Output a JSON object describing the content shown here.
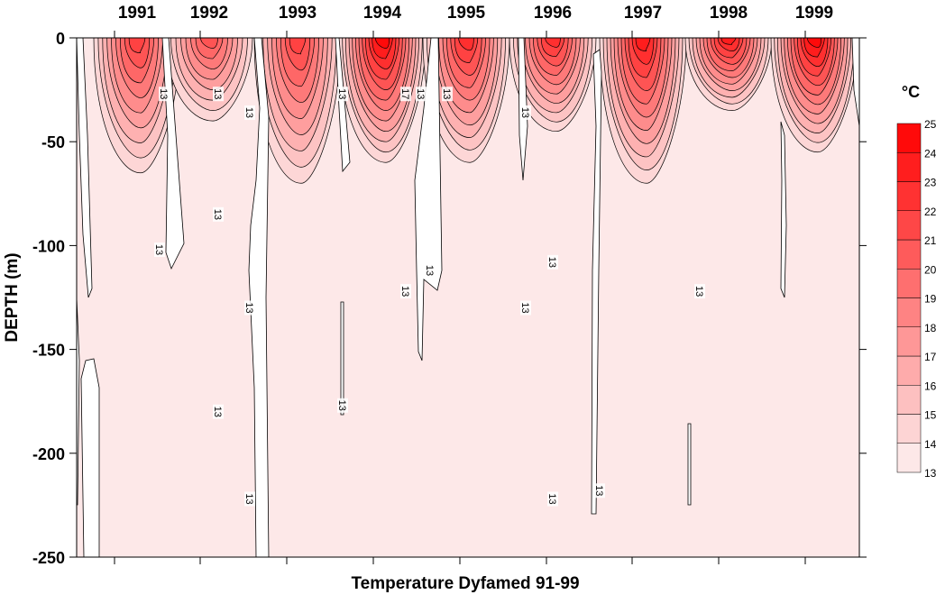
{
  "chart_data": {
    "type": "heatmap",
    "title": "Temperature Dyfamed 91-99",
    "ylabel": "DEPTH (m)",
    "xlabel": "",
    "ylim": [
      -250,
      0
    ],
    "y_ticks": [
      0,
      -50,
      -100,
      -150,
      -200,
      -250
    ],
    "x_categories": [
      "1991",
      "1992",
      "1993",
      "1994",
      "1995",
      "1996",
      "1997",
      "1998",
      "1999"
    ],
    "colorbar": {
      "unit": "°C",
      "levels": [
        13,
        14,
        15,
        16,
        17,
        18,
        19,
        20,
        21,
        22,
        23,
        24,
        25
      ],
      "min_color": "#fde8e8",
      "max_color": "#ff0a0a"
    },
    "contour_labels": [
      {
        "year": "1991",
        "depth": -27,
        "value": "13"
      },
      {
        "year": "1991",
        "depth": -102,
        "value": "13"
      },
      {
        "year": "1992",
        "depth": -27,
        "value": "13"
      },
      {
        "year": "1992",
        "depth": -36,
        "value": "13"
      },
      {
        "year": "1992",
        "depth": -85,
        "value": "13"
      },
      {
        "year": "1992",
        "depth": -130,
        "value": "13"
      },
      {
        "year": "1992",
        "depth": -180,
        "value": "13"
      },
      {
        "year": "1992",
        "depth": -222,
        "value": "13"
      },
      {
        "year": "1993",
        "depth": -27,
        "value": "13"
      },
      {
        "year": "1993",
        "depth": -177,
        "value": "13"
      },
      {
        "year": "1994",
        "depth": -27,
        "value": "17"
      },
      {
        "year": "1994",
        "depth": -27,
        "value": "13"
      },
      {
        "year": "1994",
        "depth": -122,
        "value": "13"
      },
      {
        "year": "1995",
        "depth": -112,
        "value": "13"
      },
      {
        "year": "1995",
        "depth": -27,
        "value": "13"
      },
      {
        "year": "1996",
        "depth": -36,
        "value": "13"
      },
      {
        "year": "1996",
        "depth": -108,
        "value": "13"
      },
      {
        "year": "1996",
        "depth": -130,
        "value": "13"
      },
      {
        "year": "1996",
        "depth": -222,
        "value": "13"
      },
      {
        "year": "1997",
        "depth": -218,
        "value": "13"
      },
      {
        "year": "1998",
        "depth": -122,
        "value": "13"
      }
    ],
    "seasonal_warm_layers": [
      {
        "year": "1991",
        "max_temp": 22,
        "depth_of_13C_isotherm": -65
      },
      {
        "year": "1992",
        "max_temp": 21,
        "depth_of_13C_isotherm": -40
      },
      {
        "year": "1993",
        "max_temp": 22,
        "depth_of_13C_isotherm": -70
      },
      {
        "year": "1994",
        "max_temp": 25,
        "depth_of_13C_isotherm": -60
      },
      {
        "year": "1995",
        "max_temp": 23,
        "depth_of_13C_isotherm": -60
      },
      {
        "year": "1996",
        "max_temp": 23,
        "depth_of_13C_isotherm": -45
      },
      {
        "year": "1997",
        "max_temp": 24,
        "depth_of_13C_isotherm": -70
      },
      {
        "year": "1998",
        "max_temp": 24,
        "depth_of_13C_isotherm": -35
      },
      {
        "year": "1999",
        "max_temp": 25,
        "depth_of_13C_isotherm": -55
      }
    ]
  }
}
